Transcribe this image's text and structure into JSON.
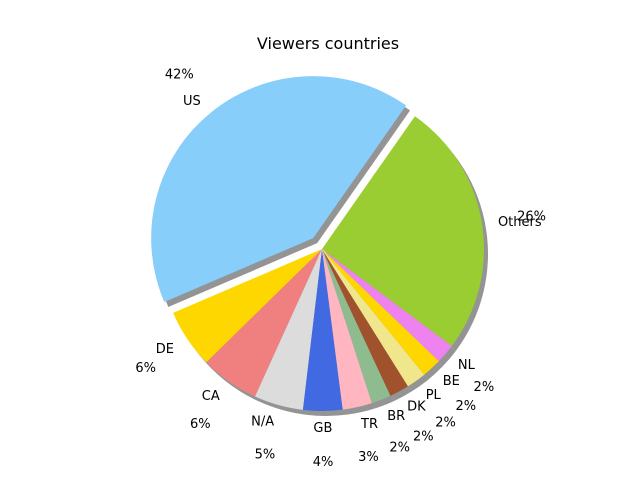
{
  "chart_data": {
    "type": "pie",
    "title": "Viewers countries",
    "slices": [
      {
        "label": "US",
        "value": 42,
        "pct_label": "42%",
        "color": "#87CEFA",
        "exploded": true
      },
      {
        "label": "DE",
        "value": 6,
        "pct_label": "6%",
        "color": "#FFD700"
      },
      {
        "label": "CA",
        "value": 6,
        "pct_label": "6%",
        "color": "#F08080"
      },
      {
        "label": "N/A",
        "value": 5,
        "pct_label": "5%",
        "color": "#DCDCDC"
      },
      {
        "label": "GB",
        "value": 4,
        "pct_label": "4%",
        "color": "#4169E1"
      },
      {
        "label": "TR",
        "value": 3,
        "pct_label": "3%",
        "color": "#FFB6C1"
      },
      {
        "label": "BR",
        "value": 2,
        "pct_label": "2%",
        "color": "#8FBC8F"
      },
      {
        "label": "DK",
        "value": 2,
        "pct_label": "2%",
        "color": "#A0522D"
      },
      {
        "label": "PL",
        "value": 2,
        "pct_label": "2%",
        "color": "#F0E68C"
      },
      {
        "label": "BE",
        "value": 2,
        "pct_label": "2%",
        "color": "#FFD700"
      },
      {
        "label": "NL",
        "value": 2,
        "pct_label": "2%",
        "color": "#EE82EE"
      },
      {
        "label": "Others",
        "value": 26,
        "pct_label": "26%",
        "color": "#9ACD32"
      }
    ],
    "start_angle": 55,
    "shadow": true,
    "legend": "none"
  }
}
